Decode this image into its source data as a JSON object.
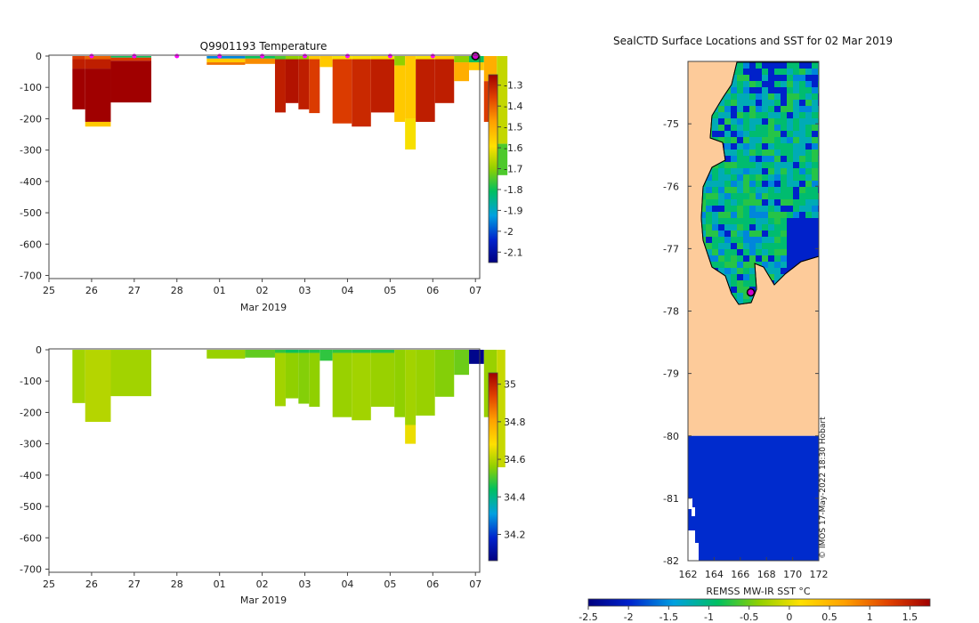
{
  "chart_data": [
    {
      "type": "heatmap",
      "title": "Q9901193  Temperature",
      "xlabel": "Mar 2019",
      "x_ticks": [
        "25",
        "26",
        "27",
        "28",
        "01",
        "02",
        "03",
        "04",
        "05",
        "06",
        "07"
      ],
      "y_ticks": [
        0,
        -100,
        -200,
        -300,
        -400,
        -500,
        -600,
        -700
      ],
      "ylim": [
        -710,
        0
      ],
      "colorbar": {
        "ticks": [
          -1.3,
          -1.4,
          -1.5,
          -1.6,
          -1.7,
          -1.8,
          -1.9,
          -2,
          -2.1
        ],
        "range": [
          -2.15,
          -1.25
        ]
      },
      "profile_markers_days": [
        26,
        27,
        28,
        29,
        30,
        31,
        32,
        33,
        34,
        35
      ],
      "profiles": [
        {
          "d0": 25.55,
          "d1": 25.85,
          "depth": 170,
          "layers": [
            [
              0,
              10,
              -1.35
            ],
            [
              10,
              40,
              -1.3
            ],
            [
              40,
              170,
              -1.25
            ]
          ]
        },
        {
          "d0": 25.85,
          "d1": 26.45,
          "depth": 225,
          "layers": [
            [
              0,
              10,
              -1.4
            ],
            [
              10,
              40,
              -1.3
            ],
            [
              40,
              210,
              -1.25
            ],
            [
              210,
              225,
              -1.55
            ]
          ]
        },
        {
          "d0": 26.45,
          "d1": 27.4,
          "depth": 148,
          "layers": [
            [
              0,
              5,
              -1.8
            ],
            [
              5,
              15,
              -1.35
            ],
            [
              15,
              148,
              -1.25
            ]
          ]
        },
        {
          "d0": 28.7,
          "d1": 29.6,
          "depth": 28,
          "layers": [
            [
              0,
              8,
              -1.95
            ],
            [
              8,
              20,
              -1.55
            ],
            [
              20,
              28,
              -1.42
            ]
          ]
        },
        {
          "d0": 29.6,
          "d1": 30.3,
          "depth": 25,
          "layers": [
            [
              0,
              8,
              -1.8
            ],
            [
              8,
              25,
              -1.45
            ]
          ]
        },
        {
          "d0": 30.3,
          "d1": 30.55,
          "depth": 180,
          "layers": [
            [
              0,
              10,
              -1.75
            ],
            [
              10,
              180,
              -1.3
            ]
          ]
        },
        {
          "d0": 30.55,
          "d1": 30.85,
          "depth": 150,
          "layers": [
            [
              0,
              10,
              -1.7
            ],
            [
              10,
              150,
              -1.28
            ]
          ]
        },
        {
          "d0": 30.85,
          "d1": 31.1,
          "depth": 170,
          "layers": [
            [
              0,
              10,
              -1.7
            ],
            [
              10,
              170,
              -1.3
            ]
          ]
        },
        {
          "d0": 31.1,
          "d1": 31.35,
          "depth": 182,
          "layers": [
            [
              0,
              10,
              -1.55
            ],
            [
              10,
              182,
              -1.35
            ]
          ]
        },
        {
          "d0": 31.35,
          "d1": 31.65,
          "depth": 35,
          "layers": [
            [
              0,
              35,
              -1.55
            ]
          ]
        },
        {
          "d0": 31.65,
          "d1": 32.1,
          "depth": 215,
          "layers": [
            [
              0,
              10,
              -1.6
            ],
            [
              10,
              215,
              -1.35
            ]
          ]
        },
        {
          "d0": 32.1,
          "d1": 32.55,
          "depth": 225,
          "layers": [
            [
              0,
              10,
              -1.6
            ],
            [
              10,
              225,
              -1.32
            ]
          ]
        },
        {
          "d0": 32.55,
          "d1": 33.1,
          "depth": 180,
          "layers": [
            [
              0,
              10,
              -1.6
            ],
            [
              10,
              180,
              -1.3
            ]
          ]
        },
        {
          "d0": 33.1,
          "d1": 33.35,
          "depth": 210,
          "layers": [
            [
              0,
              30,
              -1.7
            ],
            [
              30,
              210,
              -1.55
            ]
          ]
        },
        {
          "d0": 33.35,
          "d1": 33.6,
          "depth": 298,
          "layers": [
            [
              0,
              200,
              -1.55
            ],
            [
              200,
              298,
              -1.6
            ]
          ]
        },
        {
          "d0": 33.6,
          "d1": 34.05,
          "depth": 210,
          "layers": [
            [
              0,
              10,
              -1.6
            ],
            [
              10,
              210,
              -1.3
            ]
          ]
        },
        {
          "d0": 34.05,
          "d1": 34.5,
          "depth": 150,
          "layers": [
            [
              0,
              10,
              -1.55
            ],
            [
              10,
              150,
              -1.3
            ]
          ]
        },
        {
          "d0": 34.5,
          "d1": 34.85,
          "depth": 80,
          "layers": [
            [
              0,
              20,
              -1.7
            ],
            [
              20,
              80,
              -1.5
            ]
          ]
        },
        {
          "d0": 34.85,
          "d1": 35.2,
          "depth": 45,
          "layers": [
            [
              0,
              20,
              -1.8
            ],
            [
              20,
              45,
              -1.55
            ]
          ]
        },
        {
          "d0": 35.2,
          "d1": 35.5,
          "depth": 210,
          "layers": [
            [
              0,
              80,
              -1.5
            ],
            [
              80,
              210,
              -1.35
            ]
          ]
        },
        {
          "d0": 35.5,
          "d1": 35.75,
          "depth": 380,
          "layers": [
            [
              0,
              280,
              -1.65
            ],
            [
              280,
              380,
              -1.75
            ]
          ]
        }
      ]
    },
    {
      "type": "heatmap",
      "title": "",
      "xlabel": "Mar 2019",
      "x_ticks": [
        "25",
        "26",
        "27",
        "28",
        "01",
        "02",
        "03",
        "04",
        "05",
        "06",
        "07"
      ],
      "y_ticks": [
        0,
        -100,
        -200,
        -300,
        -400,
        -500,
        -600,
        -700
      ],
      "ylim": [
        -710,
        0
      ],
      "colorbar": {
        "ticks": [
          35,
          34.8,
          34.6,
          34.4,
          34.2
        ],
        "range": [
          34.06,
          35.06
        ]
      },
      "profiles": [
        {
          "d0": 25.55,
          "d1": 25.85,
          "depth": 170,
          "layers": [
            [
              0,
              170,
              34.58
            ]
          ]
        },
        {
          "d0": 25.85,
          "d1": 26.45,
          "depth": 230,
          "layers": [
            [
              0,
              230,
              34.6
            ]
          ]
        },
        {
          "d0": 26.45,
          "d1": 27.4,
          "depth": 148,
          "layers": [
            [
              0,
              148,
              34.58
            ]
          ]
        },
        {
          "d0": 28.7,
          "d1": 29.6,
          "depth": 28,
          "layers": [
            [
              0,
              28,
              34.57
            ]
          ]
        },
        {
          "d0": 29.6,
          "d1": 30.3,
          "depth": 25,
          "layers": [
            [
              0,
              25,
              34.52
            ]
          ]
        },
        {
          "d0": 30.3,
          "d1": 30.55,
          "depth": 180,
          "layers": [
            [
              0,
              10,
              34.48
            ],
            [
              10,
              180,
              34.58
            ]
          ]
        },
        {
          "d0": 30.55,
          "d1": 30.85,
          "depth": 155,
          "layers": [
            [
              0,
              10,
              34.45
            ],
            [
              10,
              155,
              34.56
            ]
          ]
        },
        {
          "d0": 30.85,
          "d1": 31.1,
          "depth": 172,
          "layers": [
            [
              0,
              10,
              34.46
            ],
            [
              10,
              172,
              34.55
            ]
          ]
        },
        {
          "d0": 31.1,
          "d1": 31.35,
          "depth": 182,
          "layers": [
            [
              0,
              10,
              34.47
            ],
            [
              10,
              182,
              34.56
            ]
          ]
        },
        {
          "d0": 31.35,
          "d1": 31.65,
          "depth": 35,
          "layers": [
            [
              0,
              35,
              34.48
            ]
          ]
        },
        {
          "d0": 31.65,
          "d1": 32.1,
          "depth": 215,
          "layers": [
            [
              0,
              10,
              34.48
            ],
            [
              10,
              215,
              34.57
            ]
          ]
        },
        {
          "d0": 32.1,
          "d1": 32.55,
          "depth": 225,
          "layers": [
            [
              0,
              10,
              34.47
            ],
            [
              10,
              225,
              34.58
            ]
          ]
        },
        {
          "d0": 32.55,
          "d1": 33.1,
          "depth": 182,
          "layers": [
            [
              0,
              10,
              34.47
            ],
            [
              10,
              182,
              34.57
            ]
          ]
        },
        {
          "d0": 33.1,
          "d1": 33.35,
          "depth": 215,
          "layers": [
            [
              0,
              215,
              34.56
            ]
          ]
        },
        {
          "d0": 33.35,
          "d1": 33.6,
          "depth": 300,
          "layers": [
            [
              0,
              240,
              34.58
            ],
            [
              240,
              300,
              34.66
            ]
          ]
        },
        {
          "d0": 33.6,
          "d1": 34.05,
          "depth": 210,
          "layers": [
            [
              0,
              210,
              34.57
            ]
          ]
        },
        {
          "d0": 34.05,
          "d1": 34.5,
          "depth": 150,
          "layers": [
            [
              0,
              150,
              34.55
            ]
          ]
        },
        {
          "d0": 34.5,
          "d1": 34.85,
          "depth": 80,
          "layers": [
            [
              0,
              80,
              34.53
            ]
          ]
        },
        {
          "d0": 34.85,
          "d1": 35.2,
          "depth": 45,
          "layers": [
            [
              0,
              45,
              34.08
            ]
          ]
        },
        {
          "d0": 35.2,
          "d1": 35.5,
          "depth": 215,
          "layers": [
            [
              0,
              215,
              34.57
            ]
          ]
        },
        {
          "d0": 35.5,
          "d1": 35.7,
          "depth": 375,
          "layers": [
            [
              0,
              375,
              34.62
            ]
          ]
        }
      ]
    },
    {
      "type": "heatmap",
      "title": "SealCTD Surface Locations and SST for 02 Mar 2019",
      "x_ticks": [
        162,
        164,
        166,
        168,
        170,
        172
      ],
      "y_ticks": [
        -75,
        -76,
        -77,
        -78,
        -79,
        -80,
        -81,
        -82
      ],
      "xlim": [
        162,
        172
      ],
      "ylim": [
        -82,
        -74
      ],
      "colorbar": {
        "label": "REMSS MW-IR SST °C",
        "ticks": [
          -2.5,
          -2,
          -1.5,
          -1,
          -0.5,
          0,
          0.5,
          1,
          1.5
        ],
        "range": [
          -2.5,
          1.75
        ]
      },
      "ice_shelf_lat": -80,
      "ice_shelf_sst": -1.95,
      "ocean_sst_typical": -1.1,
      "seal_location": {
        "lon": 166.8,
        "lat": -77.7
      },
      "credit": "© IMOS 17-May-2022 18:30 Hobart"
    }
  ]
}
